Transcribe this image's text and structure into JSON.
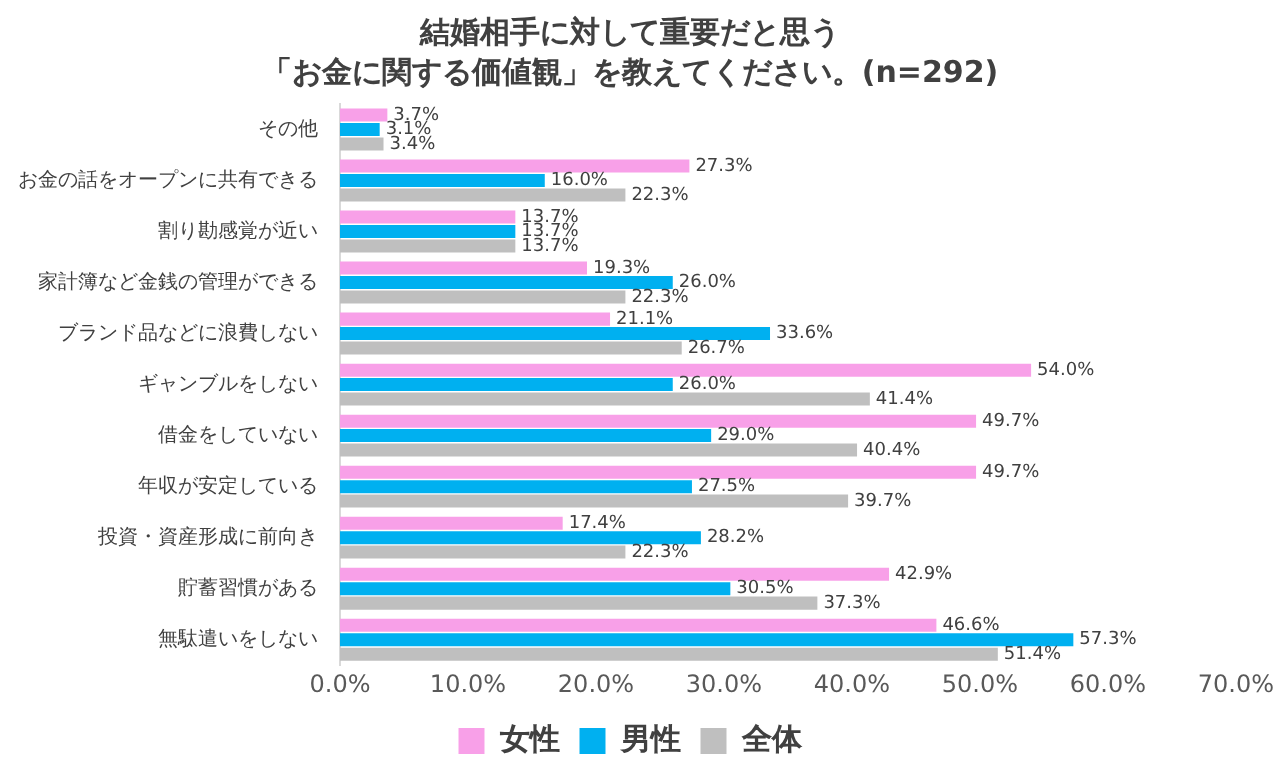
{
  "chart_data": {
    "type": "bar",
    "orientation": "horizontal",
    "title": "結婚相手に対して重要だと思う",
    "subtitle": "「お金に関する価値観」を教えてください。(n=292)",
    "categories": [
      "その他",
      "お金の話をオープンに共有できる",
      "割り勘感覚が近い",
      "家計簿など金銭の管理ができる",
      "ブランド品などに浪費しない",
      "ギャンブルをしない",
      "借金をしていない",
      "年収が安定している",
      "投資・資産形成に前向き",
      "貯蓄習慣がある",
      "無駄遣いをしない"
    ],
    "series": [
      {
        "name": "女性",
        "color": "#f8a0e8",
        "values": [
          3.7,
          27.3,
          13.7,
          19.3,
          21.1,
          54.0,
          49.7,
          49.7,
          17.4,
          42.9,
          46.6
        ],
        "value_labels": [
          "3.7%",
          "27.3%",
          "13.7%",
          "19.3%",
          "21.1%",
          "54.0%",
          "49.7%",
          "49.7%",
          "17.4%",
          "42.9%",
          "46.6%"
        ]
      },
      {
        "name": "男性",
        "color": "#00b0f0",
        "values": [
          3.1,
          16.0,
          13.7,
          26.0,
          33.6,
          26.0,
          29.0,
          27.5,
          28.2,
          30.5,
          57.3
        ],
        "value_labels": [
          "3.1%",
          "16.0%",
          "13.7%",
          "26.0%",
          "33.6%",
          "26.0%",
          "29.0%",
          "27.5%",
          "28.2%",
          "30.5%",
          "57.3%"
        ]
      },
      {
        "name": "全体",
        "color": "#bfbfbf",
        "values": [
          3.4,
          22.3,
          13.7,
          22.3,
          26.7,
          41.4,
          40.4,
          39.7,
          22.3,
          37.3,
          51.4
        ],
        "value_labels": [
          "3.4%",
          "22.3%",
          "13.7%",
          "22.3%",
          "26.7%",
          "41.4%",
          "40.4%",
          "39.7%",
          "22.3%",
          "37.3%",
          "51.4%"
        ]
      }
    ],
    "xlim": [
      0,
      70
    ],
    "xticks": [
      {
        "value": 0,
        "label": "0.0%"
      },
      {
        "value": 10,
        "label": "10.0%"
      },
      {
        "value": 20,
        "label": "20.0%"
      },
      {
        "value": 30,
        "label": "30.0%"
      },
      {
        "value": 40,
        "label": "40.0%"
      },
      {
        "value": 50,
        "label": "50.0%"
      },
      {
        "value": 60,
        "label": "60.0%"
      },
      {
        "value": 70,
        "label": "70.0%"
      }
    ],
    "grid": false,
    "legend": "bottom"
  }
}
